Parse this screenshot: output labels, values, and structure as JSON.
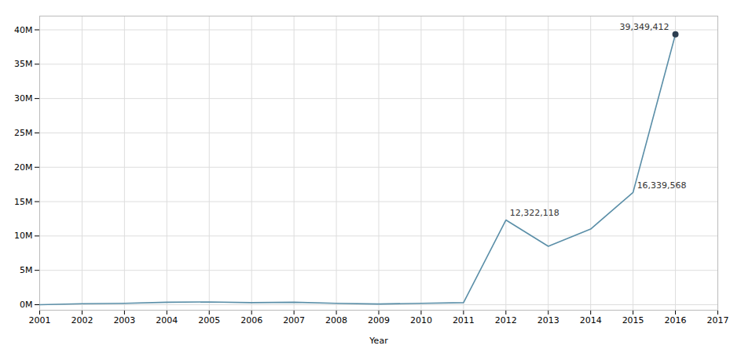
{
  "chart_data": {
    "type": "line",
    "xlabel": "Year",
    "x": [
      2001,
      2002,
      2003,
      2004,
      2005,
      2006,
      2007,
      2008,
      2009,
      2010,
      2011,
      2012,
      2013,
      2014,
      2015,
      2016
    ],
    "values": [
      0,
      150000,
      200000,
      350000,
      400000,
      300000,
      350000,
      200000,
      100000,
      200000,
      300000,
      12322118,
      8500000,
      11000000,
      16339568,
      39349412
    ],
    "color": "#5b8fa8",
    "points": [
      {
        "x": 2016,
        "y": 39349412,
        "color": "#2c3e50"
      }
    ],
    "marker": "circle",
    "annotations": [
      {
        "x": 2012,
        "y": 12322118,
        "text": "12,322,118"
      },
      {
        "x": 2016,
        "y": 39349412,
        "text": "39,349,412"
      },
      {
        "x": 2015,
        "y": 16339568,
        "text": "16,339,568"
      }
    ],
    "xlim": [
      2001,
      2017
    ],
    "xticks": [
      2001,
      2002,
      2003,
      2004,
      2005,
      2006,
      2007,
      2008,
      2009,
      2010,
      2011,
      2012,
      2013,
      2014,
      2015,
      2016,
      2017
    ],
    "ylim": [
      -800000,
      42000000
    ],
    "yticks": [
      {
        "value": 0,
        "label": "0M"
      },
      {
        "value": 5000000,
        "label": "5M"
      },
      {
        "value": 10000000,
        "label": "10M"
      },
      {
        "value": 15000000,
        "label": "15M"
      },
      {
        "value": 20000000,
        "label": "20M"
      },
      {
        "value": 25000000,
        "label": "25M"
      },
      {
        "value": 30000000,
        "label": "30M"
      },
      {
        "value": 35000000,
        "label": "35M"
      },
      {
        "value": 40000000,
        "label": "40M"
      }
    ],
    "grid": true
  }
}
